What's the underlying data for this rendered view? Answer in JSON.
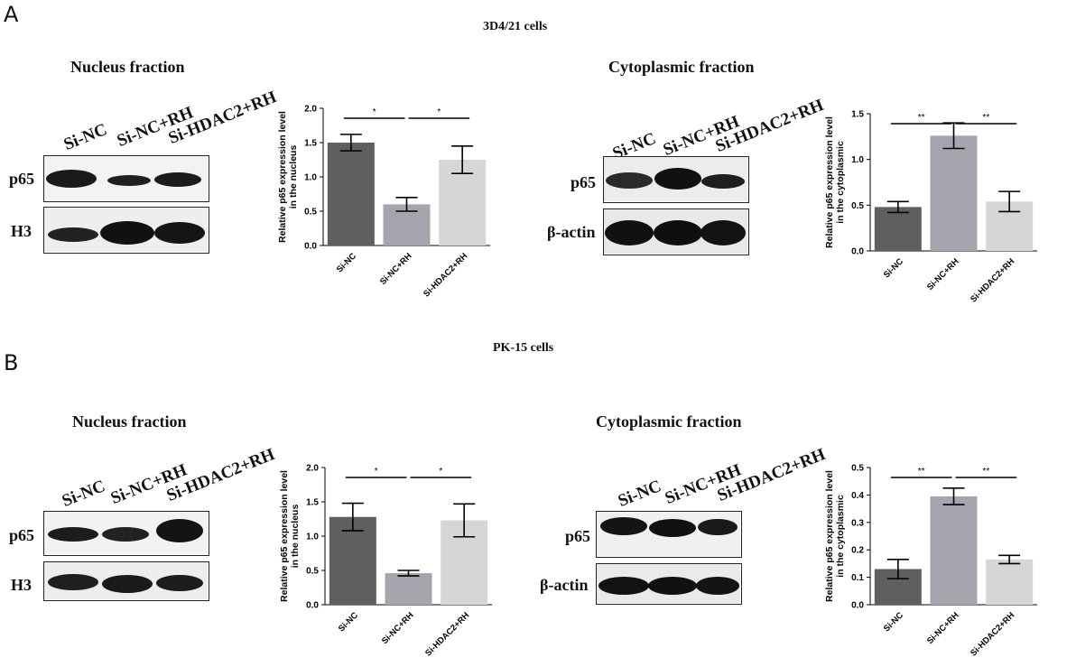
{
  "panels": [
    {
      "letter": "A",
      "cells": "3D4/21 cells",
      "nucleus": {
        "title": "Nucleus fraction",
        "lanes": [
          "Si-NC",
          "Si-NC+RH",
          "Si-HDAC2+RH"
        ],
        "rows": [
          "p65",
          "H3"
        ]
      },
      "cytoplasm": {
        "title": "Cytoplasmic fraction",
        "lanes": [
          "Si-NC",
          "Si-NC+RH",
          "Si-HDAC2+RH"
        ],
        "rows": [
          "p65",
          "β-actin"
        ]
      }
    },
    {
      "letter": "B",
      "cells": "PK-15 cells",
      "nucleus": {
        "title": "Nucleus fraction",
        "lanes": [
          "Si-NC",
          "Si-NC+RH",
          "Si-HDAC2+RH"
        ],
        "rows": [
          "p65",
          "H3"
        ]
      },
      "cytoplasm": {
        "title": "Cytoplasmic fraction",
        "lanes": [
          "Si-NC",
          "Si-NC+RH",
          "Si-HDAC2+RH"
        ],
        "rows": [
          "p65",
          "β-actin"
        ]
      }
    }
  ],
  "colors": {
    "bar1": "#5f5f5f",
    "bar2": "#a5a5ad",
    "bar3": "#d6d6d6",
    "band": "#1a1a1a",
    "blot_bg": "#f2f2f2"
  },
  "chart_data": [
    {
      "type": "bar",
      "categories": [
        "Si-NC",
        "Si-NC+RH",
        "Si-HDAC2+RH"
      ],
      "values": [
        1.5,
        0.6,
        1.25
      ],
      "errors": [
        0.12,
        0.1,
        0.2
      ],
      "ylabel": [
        "Relative p65 expression level",
        "in the nucleus"
      ],
      "ylim": [
        0,
        2.0
      ],
      "yticks": [
        "0.0",
        "0.5",
        "1.0",
        "1.5",
        "2.0"
      ],
      "significance": [
        {
          "between": [
            0,
            1
          ],
          "label": "*"
        },
        {
          "between": [
            1,
            2
          ],
          "label": "*"
        }
      ]
    },
    {
      "type": "bar",
      "categories": [
        "Si-NC",
        "Si-NC+RH",
        "Si-HDAC2+RH"
      ],
      "values": [
        0.48,
        1.26,
        0.54
      ],
      "errors": [
        0.06,
        0.14,
        0.11
      ],
      "ylabel": [
        "Relative p65 expression level",
        "in the cytoplasmic"
      ],
      "ylim": [
        0,
        1.5
      ],
      "yticks": [
        "0.0",
        "0.5",
        "1.0",
        "1.5"
      ],
      "significance": [
        {
          "between": [
            0,
            1
          ],
          "label": "**"
        },
        {
          "between": [
            1,
            2
          ],
          "label": "**"
        }
      ]
    },
    {
      "type": "bar",
      "categories": [
        "Si-NC",
        "Si-NC+RH",
        "Si-HDAC2+RH"
      ],
      "values": [
        1.28,
        0.46,
        1.23
      ],
      "errors": [
        0.2,
        0.04,
        0.24
      ],
      "ylabel": [
        "Relative p65 expression level",
        "in the nucleus"
      ],
      "ylim": [
        0,
        2.0
      ],
      "yticks": [
        "0.0",
        "0.5",
        "1.0",
        "1.5",
        "2.0"
      ],
      "significance": [
        {
          "between": [
            0,
            1
          ],
          "label": "*"
        },
        {
          "between": [
            1,
            2
          ],
          "label": "*"
        }
      ]
    },
    {
      "type": "bar",
      "categories": [
        "Si-NC",
        "Si-NC+RH",
        "Si-HDAC2+RH"
      ],
      "values": [
        0.13,
        0.395,
        0.165
      ],
      "errors": [
        0.035,
        0.03,
        0.015
      ],
      "ylabel": [
        "Relative p65 expression level",
        "in the cytoplasmic"
      ],
      "ylim": [
        0,
        0.5
      ],
      "yticks": [
        "0.0",
        "0.1",
        "0.2",
        "0.3",
        "0.4",
        "0.5"
      ],
      "significance": [
        {
          "between": [
            0,
            1
          ],
          "label": "**"
        },
        {
          "between": [
            1,
            2
          ],
          "label": "**"
        }
      ]
    }
  ]
}
